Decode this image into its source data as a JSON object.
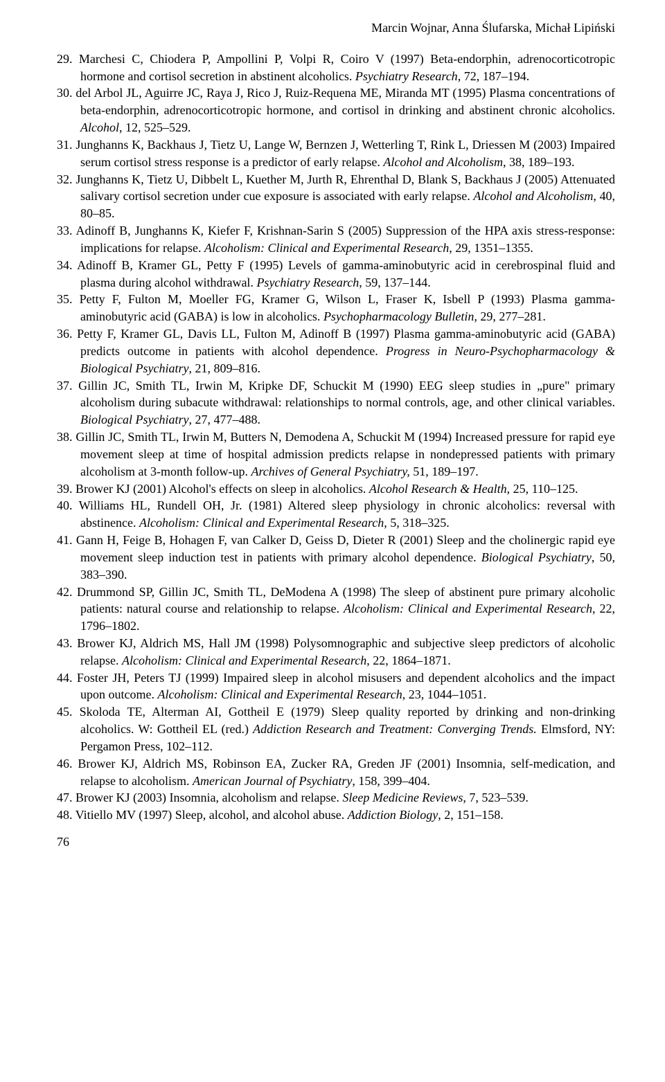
{
  "header": {
    "authors": "Marcin Wojnar, Anna Ślufarska, Michał Lipiński"
  },
  "references": [
    {
      "num": "29.",
      "parts": [
        {
          "t": "Marchesi C, Chiodera P, Ampollini P, Volpi R, Coiro V (1997) Beta-endorphin, adrenocorticotropic hormone and cortisol secretion in abstinent alcoholics. ",
          "i": false
        },
        {
          "t": "Psychiatry Research",
          "i": true
        },
        {
          "t": ", 72, 187–194.",
          "i": false
        }
      ]
    },
    {
      "num": "30.",
      "parts": [
        {
          "t": "del Arbol JL, Aguirre JC, Raya J, Rico J, Ruiz-Requena ME, Miranda MT (1995) Plasma concentrations of beta-endorphin, adrenocorticotropic hormone, and cortisol in drinking and abstinent chronic alcoholics. ",
          "i": false
        },
        {
          "t": "Alcohol",
          "i": true
        },
        {
          "t": ", 12, 525–529.",
          "i": false
        }
      ]
    },
    {
      "num": "31.",
      "parts": [
        {
          "t": "Junghanns K, Backhaus J, Tietz U, Lange W, Bernzen J, Wetterling T, Rink L, Driessen M (2003) Impaired serum cortisol stress response is a predictor of early relapse. ",
          "i": false
        },
        {
          "t": "Alcohol and Alcoholism",
          "i": true
        },
        {
          "t": ", 38, 189–193.",
          "i": false
        }
      ]
    },
    {
      "num": "32.",
      "parts": [
        {
          "t": "Junghanns K, Tietz U, Dibbelt L, Kuether M, Jurth R, Ehrenthal D, Blank S, Backhaus J (2005) Attenuated salivary cortisol secretion under cue exposure is associated with early relapse. ",
          "i": false
        },
        {
          "t": "Alcohol and Alcoholism",
          "i": true
        },
        {
          "t": ", 40, 80–85.",
          "i": false
        }
      ]
    },
    {
      "num": "33.",
      "parts": [
        {
          "t": "Adinoff B, Junghanns K, Kiefer F, Krishnan-Sarin S (2005) Suppression of the HPA axis stress-response: implications for relapse. ",
          "i": false
        },
        {
          "t": "Alcoholism: Clinical and Experimental Research",
          "i": true
        },
        {
          "t": ", 29, 1351–1355.",
          "i": false
        }
      ]
    },
    {
      "num": "34.",
      "parts": [
        {
          "t": "Adinoff B, Kramer GL, Petty F (1995) Levels of gamma-aminobutyric acid in cerebrospinal fluid and plasma during alcohol withdrawal. ",
          "i": false
        },
        {
          "t": "Psychiatry Research",
          "i": true
        },
        {
          "t": ", 59, 137–144.",
          "i": false
        }
      ]
    },
    {
      "num": "35.",
      "parts": [
        {
          "t": "Petty F, Fulton M, Moeller FG, Kramer G, Wilson L, Fraser K, Isbell P (1993) Plasma gamma-aminobutyric acid (GABA) is low in alcoholics. ",
          "i": false
        },
        {
          "t": "Psychopharmacology Bulletin,",
          "i": true
        },
        {
          "t": " 29, 277–281.",
          "i": false
        }
      ]
    },
    {
      "num": "36.",
      "parts": [
        {
          "t": "Petty F, Kramer GL, Davis LL, Fulton M, Adinoff B (1997) Plasma gamma-aminobutyric acid (GABA) predicts outcome in patients with alcohol dependence. ",
          "i": false
        },
        {
          "t": "Progress in Neuro-Psychopharmacology & Biological Psychiatry",
          "i": true
        },
        {
          "t": ", 21, 809–816.",
          "i": false
        }
      ]
    },
    {
      "num": "37.",
      "parts": [
        {
          "t": "Gillin JC, Smith TL, Irwin M, Kripke DF, Schuckit M (1990) EEG sleep studies in „pure\" primary alcoholism during subacute withdrawal: relationships to normal controls, age, and other clinical variables. ",
          "i": false
        },
        {
          "t": "Biological Psychiatry",
          "i": true
        },
        {
          "t": ", 27, 477–488.",
          "i": false
        }
      ]
    },
    {
      "num": "38.",
      "parts": [
        {
          "t": "Gillin JC, Smith TL, Irwin M, Butters N, Demodena A, Schuckit M (1994) Increased pressure for rapid eye movement sleep at time of hospital admission predicts relapse in nondepressed patients with primary alcoholism at 3-month follow-up. ",
          "i": false
        },
        {
          "t": "Archives of General Psychiatry,",
          "i": true
        },
        {
          "t": " 51, 189–197.",
          "i": false
        }
      ]
    },
    {
      "num": "39.",
      "parts": [
        {
          "t": "Brower KJ (2001) Alcohol's effects on sleep in alcoholics. ",
          "i": false
        },
        {
          "t": "Alcohol Research & Health",
          "i": true
        },
        {
          "t": ", 25, 110–125.",
          "i": false
        }
      ]
    },
    {
      "num": "40.",
      "parts": [
        {
          "t": "Williams HL, Rundell OH, Jr. (1981) Altered sleep physiology in chronic alcoholics: reversal with abstinence. ",
          "i": false
        },
        {
          "t": "Alcoholism: Clinical and Experimental Research",
          "i": true
        },
        {
          "t": ", 5, 318–325.",
          "i": false
        }
      ]
    },
    {
      "num": "41.",
      "parts": [
        {
          "t": "Gann H, Feige B, Hohagen F, van Calker D, Geiss D, Dieter R (2001) Sleep and the cholinergic rapid eye movement sleep induction test in patients with primary alcohol dependence. ",
          "i": false
        },
        {
          "t": "Biological Psychiatry",
          "i": true
        },
        {
          "t": ", 50, 383–390.",
          "i": false
        }
      ]
    },
    {
      "num": "42.",
      "parts": [
        {
          "t": "Drummond SP, Gillin JC, Smith TL, DeModena A (1998) The sleep of abstinent pure primary alcoholic patients: natural course and relationship to relapse. ",
          "i": false
        },
        {
          "t": "Alcoholism: Clinical and Experimental Research",
          "i": true
        },
        {
          "t": ", 22, 1796–1802.",
          "i": false
        }
      ]
    },
    {
      "num": "43.",
      "parts": [
        {
          "t": "Brower KJ, Aldrich MS, Hall JM (1998) Polysomnographic and subjective sleep predictors of alcoholic relapse. ",
          "i": false
        },
        {
          "t": "Alcoholism: Clinical and Experimental Research",
          "i": true
        },
        {
          "t": ", 22, 1864–1871.",
          "i": false
        }
      ]
    },
    {
      "num": "44.",
      "parts": [
        {
          "t": "Foster JH, Peters TJ (1999) Impaired sleep in alcohol misusers and dependent alcoholics and the impact upon outcome. ",
          "i": false
        },
        {
          "t": "Alcoholism: Clinical and Experimental Research",
          "i": true
        },
        {
          "t": ", 23, 1044–1051.",
          "i": false
        }
      ]
    },
    {
      "num": "45.",
      "parts": [
        {
          "t": "Skoloda TE, Alterman AI, Gottheil E (1979) Sleep quality reported by drinking and non-drinking alcoholics. W: Gottheil EL (red.) ",
          "i": false
        },
        {
          "t": "Addiction Research and Treatment: Converging Trends.",
          "i": true
        },
        {
          "t": " Elmsford, NY: Pergamon Press, 102–112.",
          "i": false
        }
      ]
    },
    {
      "num": "46.",
      "parts": [
        {
          "t": "Brower KJ, Aldrich MS, Robinson EA, Zucker RA, Greden JF (2001) Insomnia, self-medication, and relapse to alcoholism. ",
          "i": false
        },
        {
          "t": "American Journal of Psychiatry",
          "i": true
        },
        {
          "t": ", 158, 399–404.",
          "i": false
        }
      ]
    },
    {
      "num": "47.",
      "parts": [
        {
          "t": "Brower KJ (2003) Insomnia, alcoholism and relapse. ",
          "i": false
        },
        {
          "t": "Sleep Medicine Reviews",
          "i": true
        },
        {
          "t": ", 7, 523–539.",
          "i": false
        }
      ]
    },
    {
      "num": "48.",
      "parts": [
        {
          "t": "Vitiello MV (1997) Sleep, alcohol, and alcohol abuse. ",
          "i": false
        },
        {
          "t": "Addiction Biology",
          "i": true
        },
        {
          "t": ", 2, 151–158.",
          "i": false
        }
      ]
    }
  ],
  "pageNumber": "76"
}
